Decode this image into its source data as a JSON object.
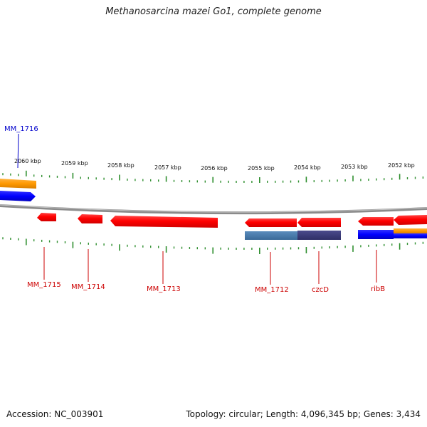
{
  "title": "Methanosarcina mazei Go1, complete genome",
  "footer": {
    "accession": "Accession: NC_003901",
    "summary": "Topology: circular; Length: 4,096,345 bp; Genes: 3,434"
  },
  "colors": {
    "backbone": "#8a8a8a",
    "tick": "#2f8f2f",
    "forward_gene": "#ff1a1a",
    "reverse_label": "#cc0000",
    "forward_label": "#0000cc",
    "cds_blue": "#0000ff",
    "cds_orange": "#ff9900",
    "feature_steel": "#4a7aa8",
    "feature_purple": "#3b3b78"
  },
  "scale_labels": [
    "2060 kbp",
    "2059 kbp",
    "2058 kbp",
    "2057 kbp",
    "2056 kbp",
    "2055 kbp",
    "2054 kbp",
    "2053 kbp",
    "2052 kbp"
  ],
  "gene_labels": [
    {
      "text": "MM_1716",
      "strand": "top",
      "color": "#0000cc"
    },
    {
      "text": "MM_1715",
      "strand": "bottom",
      "color": "#cc0000"
    },
    {
      "text": "MM_1714",
      "strand": "bottom",
      "color": "#cc0000"
    },
    {
      "text": "MM_1713",
      "strand": "bottom",
      "color": "#cc0000"
    },
    {
      "text": "MM_1712",
      "strand": "bottom",
      "color": "#cc0000"
    },
    {
      "text": "czcD",
      "strand": "bottom",
      "color": "#cc0000"
    },
    {
      "text": "ribB",
      "strand": "bottom",
      "color": "#cc0000"
    }
  ]
}
